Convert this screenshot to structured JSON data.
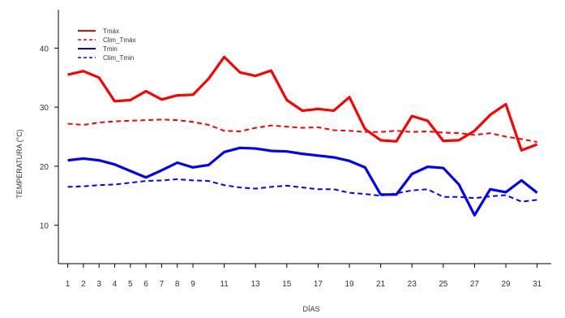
{
  "chart_data": {
    "type": "line",
    "title": "",
    "xlabel": "DÍAS",
    "ylabel": "TEMPERATURA (°C)",
    "x": [
      1,
      2,
      3,
      4,
      5,
      6,
      7,
      8,
      9,
      10,
      11,
      12,
      13,
      14,
      15,
      16,
      17,
      18,
      19,
      20,
      21,
      22,
      23,
      24,
      25,
      26,
      27,
      28,
      29,
      30,
      31
    ],
    "x_tick_labels": [
      "1",
      "2",
      "3",
      "4",
      "5",
      "6",
      "7",
      "8",
      "9",
      "11",
      "13",
      "15",
      "17",
      "19",
      "21",
      "23",
      "25",
      "27",
      "29",
      "31"
    ],
    "y_ticks": [
      10,
      20,
      30,
      40
    ],
    "ylim": [
      3.5,
      46.5
    ],
    "xlim": [
      0.4,
      31.9
    ],
    "grid": false,
    "legend_position": "top-left",
    "series": [
      {
        "name": "Tmáx",
        "color": "#ff0000",
        "style": "solid",
        "values": [
          35.5,
          36.1,
          35.0,
          31.0,
          31.2,
          32.7,
          31.3,
          32.0,
          32.1,
          34.8,
          38.5,
          35.9,
          35.3,
          36.2,
          31.2,
          29.4,
          29.7,
          29.4,
          31.7,
          26.3,
          24.4,
          24.2,
          28.5,
          27.7,
          24.3,
          24.4,
          26.0,
          28.7,
          30.5,
          22.7,
          23.7
        ]
      },
      {
        "name": "Clim_Tmáx",
        "color": "#ff0000",
        "style": "dashed",
        "values": [
          27.2,
          27.0,
          27.4,
          27.6,
          27.7,
          27.8,
          27.9,
          27.8,
          27.5,
          27.0,
          26.0,
          25.9,
          26.5,
          26.9,
          26.7,
          26.5,
          26.6,
          26.1,
          26.0,
          25.8,
          25.8,
          26.0,
          25.8,
          25.9,
          25.7,
          25.6,
          25.3,
          25.6,
          25.0,
          24.6,
          24.1
        ]
      },
      {
        "name": "Tmin",
        "color": "#0000ff",
        "style": "solid",
        "values": [
          21.0,
          21.3,
          21.0,
          20.3,
          19.2,
          18.1,
          19.3,
          20.6,
          19.8,
          20.2,
          22.4,
          23.1,
          23.0,
          22.6,
          22.5,
          22.1,
          21.8,
          21.5,
          20.9,
          19.8,
          15.2,
          15.2,
          18.7,
          19.9,
          19.7,
          16.9,
          11.7,
          16.1,
          15.6,
          17.6,
          15.5
        ]
      },
      {
        "name": "Clim_Tmin",
        "color": "#0000ff",
        "style": "dashed",
        "values": [
          16.5,
          16.6,
          16.8,
          16.9,
          17.2,
          17.5,
          17.6,
          17.8,
          17.6,
          17.5,
          16.8,
          16.4,
          16.2,
          16.5,
          16.7,
          16.4,
          16.1,
          16.1,
          15.5,
          15.3,
          15.0,
          15.4,
          15.9,
          16.1,
          14.8,
          14.8,
          14.6,
          14.9,
          15.1,
          14.0,
          14.3
        ]
      }
    ]
  }
}
